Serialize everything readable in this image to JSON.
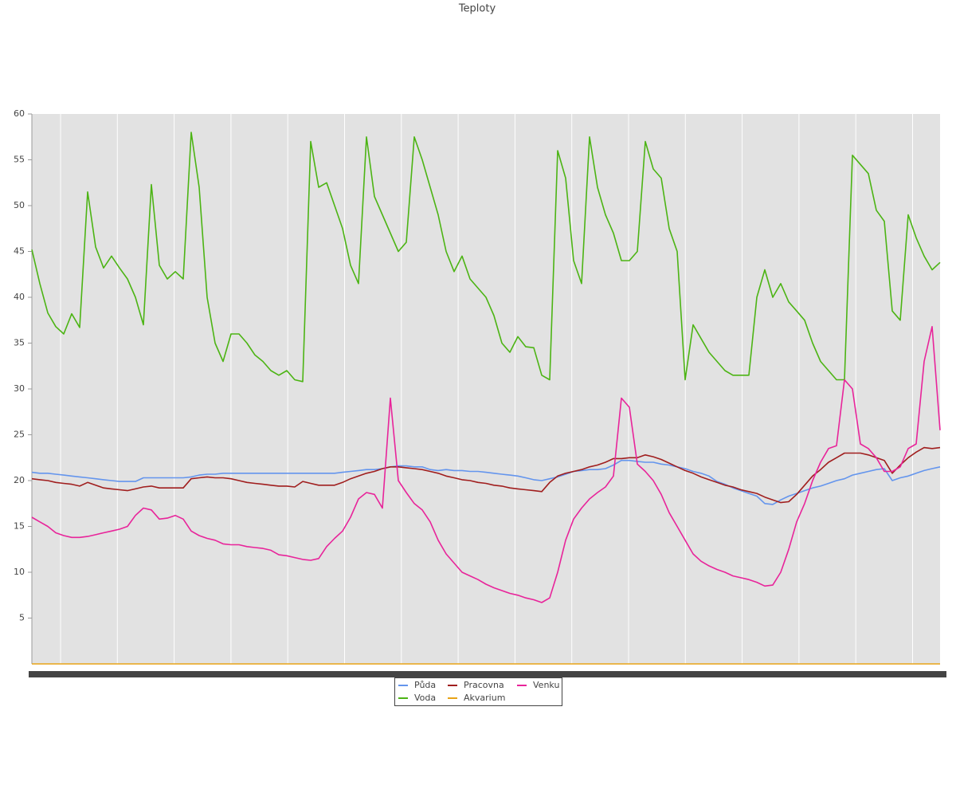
{
  "chart_data": {
    "type": "line",
    "title": "Teploty",
    "categories": [
      null,
      null,
      null,
      null,
      null,
      null,
      null,
      null,
      null,
      null,
      null,
      null,
      null,
      null,
      null,
      null,
      null,
      null,
      null,
      null,
      null,
      null,
      null,
      null,
      null,
      null,
      null,
      null,
      null,
      null,
      null,
      null,
      null,
      null,
      null,
      null,
      null,
      null,
      null,
      null,
      null,
      null,
      null,
      null,
      null,
      null,
      null,
      null,
      null,
      null,
      null,
      null,
      null,
      null,
      null,
      null,
      null,
      null,
      null,
      null,
      null,
      null,
      null,
      null,
      null,
      null,
      null,
      null,
      null,
      null,
      null,
      null,
      null,
      null,
      null,
      null,
      null,
      null,
      null,
      null,
      null,
      null,
      null,
      null,
      null,
      null,
      null,
      null,
      null,
      null,
      null,
      null,
      null,
      null,
      null,
      null,
      null,
      null,
      null,
      null,
      null,
      null,
      null,
      null,
      null,
      null,
      null,
      null,
      null,
      null,
      null,
      null,
      null,
      null,
      null
    ],
    "series": [
      {
        "name": "Půda",
        "color": "#6495ed",
        "values": [
          20.9,
          20.8,
          20.8,
          20.7,
          20.6,
          20.5,
          20.4,
          20.3,
          20.2,
          20.1,
          20.0,
          19.9,
          19.9,
          19.9,
          20.3,
          20.3,
          20.3,
          20.3,
          20.3,
          20.3,
          20.4,
          20.6,
          20.7,
          20.7,
          20.8,
          20.8,
          20.8,
          20.8,
          20.8,
          20.8,
          20.8,
          20.8,
          20.8,
          20.8,
          20.8,
          20.8,
          20.8,
          20.8,
          20.8,
          20.9,
          21.0,
          21.1,
          21.2,
          21.2,
          21.3,
          21.5,
          21.6,
          21.6,
          21.5,
          21.5,
          21.2,
          21.1,
          21.2,
          21.1,
          21.1,
          21.0,
          21.0,
          20.9,
          20.8,
          20.7,
          20.6,
          20.5,
          20.3,
          20.1,
          20.0,
          20.2,
          20.4,
          20.7,
          21.0,
          21.1,
          21.2,
          21.2,
          21.3,
          21.7,
          22.2,
          22.2,
          22.1,
          22.0,
          22.0,
          21.8,
          21.7,
          21.5,
          21.3,
          21.0,
          20.8,
          20.5,
          19.9,
          19.6,
          19.2,
          18.9,
          18.6,
          18.3,
          17.5,
          17.4,
          17.9,
          18.3,
          18.6,
          18.9,
          19.2,
          19.4,
          19.7,
          20.0,
          20.2,
          20.6,
          20.8,
          21.0,
          21.2,
          21.3,
          20.0,
          20.3,
          20.5,
          20.8,
          21.1,
          21.3,
          21.5
        ]
      },
      {
        "name": "Voda",
        "color": "#4cb414",
        "values": [
          45.2,
          41.5,
          38.3,
          36.8,
          36,
          38.2,
          36.7,
          51.5,
          45.5,
          43.2,
          44.5,
          43.2,
          42,
          40,
          37,
          52.3,
          43.5,
          42,
          42.8,
          42,
          58,
          52,
          40,
          35,
          33,
          36,
          36,
          35,
          33.7,
          33,
          32,
          31.5,
          32,
          31,
          30.8,
          57,
          52,
          52.5,
          50,
          47.5,
          43.5,
          41.5,
          57.5,
          51,
          49,
          47,
          45,
          46,
          57.5,
          55,
          52,
          49,
          45,
          42.8,
          44.5,
          42,
          41,
          40,
          38,
          35,
          34,
          35.7,
          34.6,
          34.5,
          31.5,
          31,
          56,
          53,
          44,
          41.5,
          57.5,
          52,
          49,
          47,
          44,
          44,
          45,
          57,
          54,
          53,
          47.5,
          45,
          31,
          37,
          35.5,
          34,
          33,
          32,
          31.5,
          31.5,
          31.5,
          40,
          43,
          40,
          41.5,
          39.5,
          38.5,
          37.5,
          35,
          33,
          32,
          31,
          31,
          55.5,
          54.5,
          53.5,
          49.5,
          48.3,
          38.5,
          37.5,
          49,
          46.5,
          44.5,
          43,
          43.8
        ]
      },
      {
        "name": "Pracovna",
        "color": "#a01e1e",
        "values": [
          20.2,
          20.1,
          20.0,
          19.8,
          19.7,
          19.6,
          19.4,
          19.8,
          19.5,
          19.2,
          19.1,
          19.0,
          18.9,
          19.1,
          19.3,
          19.4,
          19.2,
          19.2,
          19.2,
          19.2,
          20.2,
          20.3,
          20.4,
          20.3,
          20.3,
          20.2,
          20.0,
          19.8,
          19.7,
          19.6,
          19.5,
          19.4,
          19.4,
          19.3,
          19.9,
          19.7,
          19.5,
          19.5,
          19.5,
          19.8,
          20.2,
          20.5,
          20.8,
          21.0,
          21.3,
          21.5,
          21.5,
          21.4,
          21.3,
          21.2,
          21.0,
          20.8,
          20.5,
          20.3,
          20.1,
          20.0,
          19.8,
          19.7,
          19.5,
          19.4,
          19.2,
          19.1,
          19.0,
          18.9,
          18.8,
          19.8,
          20.5,
          20.8,
          21.0,
          21.2,
          21.5,
          21.7,
          22.0,
          22.4,
          22.4,
          22.5,
          22.5,
          22.8,
          22.6,
          22.3,
          21.9,
          21.5,
          21.1,
          20.8,
          20.4,
          20.1,
          19.8,
          19.5,
          19.3,
          19.0,
          18.8,
          18.6,
          18.2,
          17.9,
          17.6,
          17.7,
          18.5,
          19.5,
          20.5,
          21.2,
          22.0,
          22.5,
          23.0,
          23.0,
          23.0,
          22.8,
          22.5,
          22.2,
          20.8,
          21.7,
          22.5,
          23.1,
          23.6,
          23.5,
          23.6
        ]
      },
      {
        "name": "Akvarium",
        "color": "#e8a317",
        "values": [
          0,
          0,
          0,
          0,
          0,
          0,
          0,
          0,
          0,
          0,
          0,
          0,
          0,
          0,
          0,
          0,
          0,
          0,
          0,
          0,
          0,
          0,
          0,
          0,
          0,
          0,
          0,
          0,
          0,
          0,
          0,
          0,
          0,
          0,
          0,
          0,
          0,
          0,
          0,
          0,
          0,
          0,
          0,
          0,
          0,
          0,
          0,
          0,
          0,
          0,
          0,
          0,
          0,
          0,
          0,
          0,
          0,
          0,
          0,
          0,
          0,
          0,
          0,
          0,
          0,
          0,
          0,
          0,
          0,
          0,
          0,
          0,
          0,
          0,
          0,
          0,
          0,
          0,
          0,
          0,
          0,
          0,
          0,
          0,
          0,
          0,
          0,
          0,
          0,
          0,
          0,
          0,
          0,
          0,
          0,
          0,
          0,
          0,
          0,
          0,
          0,
          0,
          0,
          0,
          0,
          0,
          0,
          0,
          0,
          0,
          0,
          0,
          0,
          0,
          0
        ]
      },
      {
        "name": "Venku",
        "color": "#e8249a",
        "values": [
          16.0,
          15.5,
          15.0,
          14.3,
          14.0,
          13.8,
          13.8,
          13.9,
          14.1,
          14.3,
          14.5,
          14.7,
          15.0,
          16.2,
          17.0,
          16.8,
          15.8,
          15.9,
          16.2,
          15.8,
          14.5,
          14.0,
          13.7,
          13.5,
          13.1,
          13.0,
          13.0,
          12.8,
          12.7,
          12.6,
          12.4,
          11.9,
          11.8,
          11.6,
          11.4,
          11.3,
          11.5,
          12.8,
          13.7,
          14.5,
          16.0,
          18.0,
          18.7,
          18.5,
          17.0,
          29.0,
          20.0,
          18.7,
          17.5,
          16.8,
          15.5,
          13.5,
          12.0,
          11.0,
          10.0,
          9.6,
          9.2,
          8.7,
          8.3,
          8.0,
          7.7,
          7.5,
          7.2,
          7.0,
          6.7,
          7.2,
          10.0,
          13.5,
          15.8,
          17.0,
          18.0,
          18.7,
          19.3,
          20.5,
          29.0,
          28.0,
          21.8,
          21.0,
          20.0,
          18.5,
          16.5,
          15.0,
          13.5,
          12.0,
          11.2,
          10.7,
          10.3,
          10.0,
          9.6,
          9.4,
          9.2,
          8.9,
          8.5,
          8.6,
          10.0,
          12.5,
          15.5,
          17.5,
          20.0,
          22.0,
          23.5,
          23.8,
          31.0,
          30.0,
          24.0,
          23.5,
          22.5,
          21.0,
          21.0,
          21.5,
          23.5,
          24.0,
          33.0,
          36.8,
          25.5
        ]
      }
    ],
    "ylim": [
      0,
      60
    ],
    "yticks": [
      5,
      10,
      15,
      20,
      25,
      30,
      35,
      40,
      45,
      50,
      55,
      60
    ]
  }
}
